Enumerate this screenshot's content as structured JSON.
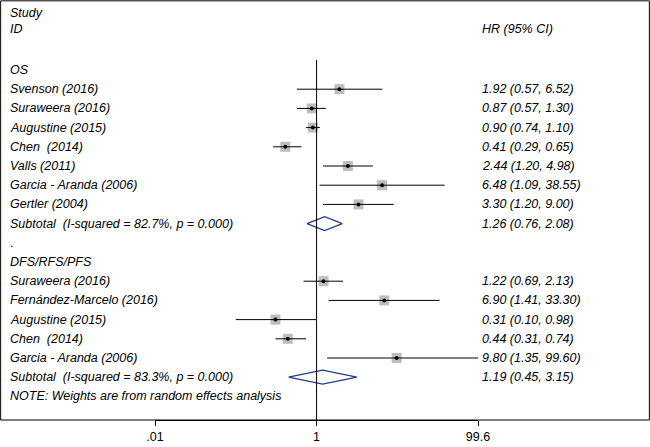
{
  "chart_data": {
    "type": "forest",
    "header": {
      "study": "Study",
      "id": "ID",
      "estimate": "HR (95% CI)"
    },
    "log": "x",
    "xlim": [
      0.01,
      99.6
    ],
    "xticks": [
      {
        "value": 0.01,
        "label": ".01"
      },
      1,
      99.6
    ],
    "reference_line": 1,
    "marker": "square",
    "color": "#000000",
    "groups": [
      {
        "name": "OS",
        "studies": [
          {
            "name": "Svenson (2016)",
            "hr": 1.92,
            "lo": 0.57,
            "hi": 6.52,
            "label": "1.92 (0.57, 6.52)"
          },
          {
            "name": "Suraweera (2016)",
            "hr": 0.87,
            "lo": 0.57,
            "hi": 1.3,
            "label": "0.87 (0.57, 1.30)"
          },
          {
            "name": "Augustine (2015)",
            "hr": 0.9,
            "lo": 0.74,
            "hi": 1.1,
            "label": "0.90 (0.74, 1.10)"
          },
          {
            "name": "Chen  (2014)",
            "hr": 0.41,
            "lo": 0.29,
            "hi": 0.65,
            "label": "0.41 (0.29, 0.65)"
          },
          {
            "name": "Valls (2011)",
            "hr": 2.44,
            "lo": 1.2,
            "hi": 4.98,
            "label": "2.44 (1.20, 4.98)"
          },
          {
            "name": "Garcia - Aranda (2006)",
            "hr": 6.48,
            "lo": 1.09,
            "hi": 38.55,
            "label": "6.48 (1.09, 38.55)"
          },
          {
            "name": "Gertler (2004)",
            "hr": 3.3,
            "lo": 1.2,
            "hi": 9.0,
            "label": "3.30 (1.20, 9.00)"
          }
        ],
        "subtotal": {
          "name": "Subtotal  (I-squared = 82.7%, p = 0.000)",
          "hr": 1.26,
          "lo": 0.76,
          "hi": 2.08,
          "label": "1.26 (0.76, 2.08)",
          "color": "#1f3c88"
        }
      },
      {
        "name": "DFS/RFS/PFS",
        "studies": [
          {
            "name": "Suraweera (2016)",
            "hr": 1.22,
            "lo": 0.69,
            "hi": 2.13,
            "label": "1.22 (0.69, 2.13)"
          },
          {
            "name": "Fernández-Marcelo (2016)",
            "hr": 6.9,
            "lo": 1.41,
            "hi": 33.3,
            "label": "6.90 (1.41, 33.30)"
          },
          {
            "name": "Augustine (2015)",
            "hr": 0.31,
            "lo": 0.1,
            "hi": 0.98,
            "label": "0.31 (0.10, 0.98)"
          },
          {
            "name": "Chen  (2014)",
            "hr": 0.44,
            "lo": 0.31,
            "hi": 0.74,
            "label": "0.44 (0.31, 0.74)"
          },
          {
            "name": "Garcia - Aranda (2006)",
            "hr": 9.8,
            "lo": 1.35,
            "hi": 99.6,
            "label": "9.80 (1.35, 99.60)"
          }
        ],
        "subtotal": {
          "name": "Subtotal  (I-squared = 83.3%, p = 0.000)",
          "hr": 1.19,
          "lo": 0.45,
          "hi": 3.15,
          "label": "1.19 (0.45, 3.15)",
          "color": "#1f3c88"
        }
      }
    ],
    "separator": ".",
    "note": "NOTE: Weights are from random effects analysis"
  }
}
